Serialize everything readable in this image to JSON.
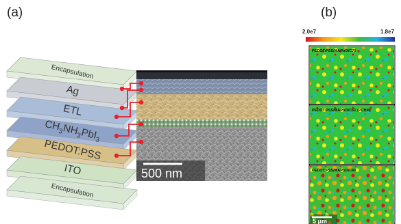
{
  "panels": {
    "a": {
      "label": "(a)"
    },
    "b": {
      "label": "(b)"
    }
  },
  "stack": {
    "layers": [
      {
        "name": "Encapsulation",
        "color": "#dbe9d4"
      },
      {
        "name": "Ag",
        "color": "#c9ccd2"
      },
      {
        "name": "ETL",
        "color": "#a9bcd8"
      },
      {
        "name": "CH3NH3PbI3",
        "color": "#8fa3c9",
        "html_parts": [
          "CH",
          "3",
          "NH",
          "3",
          "PbI",
          "3"
        ]
      },
      {
        "name": "PEDOT:PSS",
        "color": "#d7c088"
      },
      {
        "name": "ITO",
        "color": "#cfe2c4"
      },
      {
        "name": "Encapsulation",
        "color": "#d8e7d2"
      }
    ]
  },
  "sem": {
    "scale_bar": "500 nm",
    "connector_color": "#e8202a"
  },
  "pl_map": {
    "colorbar_min": "2.0e7",
    "colorbar_max": "1.8e7",
    "maps": [
      {
        "title": "PEDOT:PSS/MAPbI3/C70"
      },
      {
        "title": "PEDOT:PSS/MAPbI3/C61 (PCBM)"
      },
      {
        "title": "PEDOT:PSS/MAPbI3/C60"
      }
    ],
    "scale_bar": "5 μm"
  }
}
